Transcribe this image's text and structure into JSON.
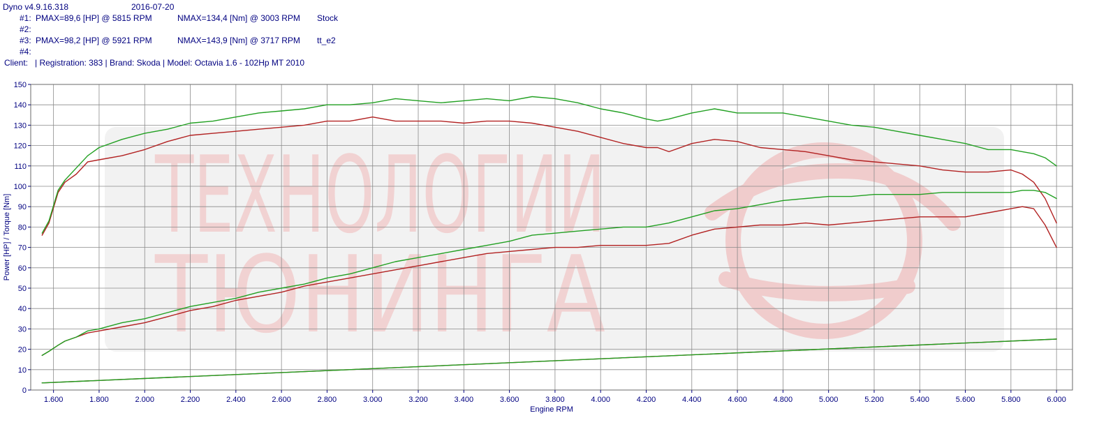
{
  "header": {
    "software": "Dyno v4.9.16.318",
    "date": "2016-07-20",
    "runs": [
      {
        "id": "#1:",
        "pmax": "PMAX=89,6 [HP] @ 5815 RPM",
        "nmax": "NMAX=134,4 [Nm] @ 3003 RPM",
        "name": "Stock"
      },
      {
        "id": "#2:",
        "pmax": "",
        "nmax": "",
        "name": ""
      },
      {
        "id": "#3:",
        "pmax": "PMAX=98,2 [HP] @ 5921 RPM",
        "nmax": "NMAX=143,9 [Nm] @ 3717 RPM",
        "name": "tt_e2"
      },
      {
        "id": "#4:",
        "pmax": "",
        "nmax": "",
        "name": ""
      }
    ],
    "client": "Client:   | Registration: 383 | Brand: Skoda | Model: Octavia 1.6 - 102Hp MT 2010"
  },
  "watermark": {
    "line1": "ТЕХНОЛОГИИ",
    "line2": "ТЮНИНГА"
  },
  "colors": {
    "stock": "#b22222",
    "tuned": "#22a022",
    "axis_text": "#000080",
    "grid": "#8a8a8a"
  },
  "chart_data": {
    "type": "line",
    "xlabel": "Engine RPM",
    "ylabel": "Power [HP] / Torque [Nm]",
    "xlim": [
      1500,
      6070
    ],
    "ylim": [
      0,
      150
    ],
    "x_ticks": [
      1600,
      1800,
      2000,
      2200,
      2400,
      2600,
      2800,
      3000,
      3200,
      3400,
      3600,
      3800,
      4000,
      4200,
      4400,
      4600,
      4800,
      5000,
      5200,
      5400,
      5600,
      5800,
      6000
    ],
    "x_tick_labels": [
      "1.600",
      "1.800",
      "2.000",
      "2.200",
      "2.400",
      "2.600",
      "2.800",
      "3.000",
      "3.200",
      "3.400",
      "3.600",
      "3.800",
      "4.000",
      "4.200",
      "4.400",
      "4.600",
      "4.800",
      "5.000",
      "5.200",
      "5.400",
      "5.600",
      "5.800",
      "6.000"
    ],
    "y_ticks": [
      0,
      10,
      20,
      30,
      40,
      50,
      60,
      70,
      80,
      90,
      100,
      110,
      120,
      130,
      140,
      150
    ],
    "grid": true,
    "series": [
      {
        "name": "Stock",
        "kind": "torque",
        "color": "#b22222",
        "x": [
          1550,
          1580,
          1620,
          1650,
          1700,
          1750,
          1800,
          1900,
          2000,
          2100,
          2200,
          2300,
          2400,
          2500,
          2600,
          2700,
          2800,
          2900,
          3000,
          3100,
          3200,
          3300,
          3400,
          3500,
          3600,
          3700,
          3800,
          3900,
          4000,
          4100,
          4200,
          4250,
          4300,
          4400,
          4500,
          4600,
          4700,
          4800,
          4900,
          5000,
          5100,
          5200,
          5300,
          5400,
          5500,
          5600,
          5700,
          5800,
          5850,
          5900,
          5950,
          6000
        ],
        "y": [
          76,
          82,
          97,
          102,
          106,
          112,
          113,
          115,
          118,
          122,
          125,
          126,
          127,
          128,
          129,
          130,
          132,
          132,
          134,
          132,
          132,
          132,
          131,
          132,
          132,
          131,
          129,
          127,
          124,
          121,
          119,
          119,
          117,
          121,
          123,
          122,
          119,
          118,
          117,
          115,
          113,
          112,
          111,
          110,
          108,
          107,
          107,
          108,
          106,
          102,
          94,
          82
        ]
      },
      {
        "name": "tt_e2",
        "kind": "torque",
        "color": "#22a022",
        "x": [
          1550,
          1580,
          1620,
          1650,
          1700,
          1750,
          1800,
          1900,
          2000,
          2100,
          2200,
          2300,
          2400,
          2500,
          2600,
          2700,
          2800,
          2900,
          3000,
          3100,
          3200,
          3300,
          3400,
          3500,
          3600,
          3700,
          3800,
          3900,
          4000,
          4100,
          4200,
          4250,
          4300,
          4400,
          4500,
          4600,
          4700,
          4800,
          4900,
          5000,
          5100,
          5200,
          5300,
          5400,
          5500,
          5600,
          5700,
          5800,
          5850,
          5900,
          5950,
          6000
        ],
        "y": [
          77,
          83,
          98,
          103,
          109,
          115,
          119,
          123,
          126,
          128,
          131,
          132,
          134,
          136,
          137,
          138,
          140,
          140,
          141,
          143,
          142,
          141,
          142,
          143,
          142,
          144,
          143,
          141,
          138,
          136,
          133,
          132,
          133,
          136,
          138,
          136,
          136,
          136,
          134,
          132,
          130,
          129,
          127,
          125,
          123,
          121,
          118,
          118,
          117,
          116,
          114,
          110
        ]
      },
      {
        "name": "Stock",
        "kind": "power",
        "color": "#b22222",
        "x": [
          1550,
          1580,
          1620,
          1650,
          1700,
          1750,
          1800,
          1900,
          2000,
          2100,
          2200,
          2300,
          2400,
          2500,
          2600,
          2700,
          2800,
          2900,
          3000,
          3100,
          3200,
          3300,
          3400,
          3500,
          3600,
          3700,
          3800,
          3900,
          4000,
          4100,
          4200,
          4300,
          4400,
          4500,
          4600,
          4700,
          4800,
          4900,
          5000,
          5100,
          5200,
          5300,
          5400,
          5500,
          5600,
          5700,
          5800,
          5850,
          5900,
          5950,
          6000
        ],
        "y": [
          17,
          19,
          22,
          24,
          26,
          28,
          29,
          31,
          33,
          36,
          39,
          41,
          44,
          46,
          48,
          51,
          53,
          55,
          57,
          59,
          61,
          63,
          65,
          67,
          68,
          69,
          70,
          70,
          71,
          71,
          71,
          72,
          76,
          79,
          80,
          81,
          81,
          82,
          81,
          82,
          83,
          84,
          85,
          85,
          85,
          87,
          89,
          90,
          89,
          81,
          70
        ]
      },
      {
        "name": "tt_e2",
        "kind": "power",
        "color": "#22a022",
        "x": [
          1550,
          1580,
          1620,
          1650,
          1700,
          1750,
          1800,
          1900,
          2000,
          2100,
          2200,
          2300,
          2400,
          2500,
          2600,
          2700,
          2800,
          2900,
          3000,
          3100,
          3200,
          3300,
          3400,
          3500,
          3600,
          3700,
          3800,
          3900,
          4000,
          4100,
          4200,
          4300,
          4400,
          4500,
          4600,
          4700,
          4800,
          4900,
          5000,
          5100,
          5200,
          5300,
          5400,
          5500,
          5600,
          5700,
          5800,
          5850,
          5900,
          5950,
          6000
        ],
        "y": [
          17,
          19,
          22,
          24,
          26,
          29,
          30,
          33,
          35,
          38,
          41,
          43,
          45,
          48,
          50,
          52,
          55,
          57,
          60,
          63,
          65,
          67,
          69,
          71,
          73,
          76,
          77,
          78,
          79,
          80,
          80,
          82,
          85,
          88,
          89,
          91,
          93,
          94,
          95,
          95,
          96,
          96,
          96,
          97,
          97,
          97,
          97,
          98,
          98,
          97,
          94
        ]
      },
      {
        "name": "Stock",
        "kind": "loss",
        "color": "#b22222",
        "x": [
          1550,
          6000
        ],
        "y": [
          3.5,
          25
        ]
      },
      {
        "name": "tt_e2",
        "kind": "loss",
        "color": "#22a022",
        "x": [
          1550,
          6000
        ],
        "y": [
          3.5,
          25
        ]
      }
    ]
  }
}
